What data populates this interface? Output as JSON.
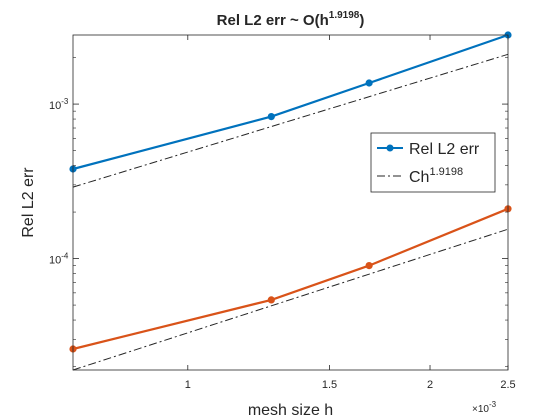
{
  "chart_data": {
    "type": "line",
    "title": {
      "base": "Rel L2 err ~ O(h",
      "exponent": "1.9198",
      "close": ")"
    },
    "xlabel": "mesh size h",
    "x_multiplier": {
      "base": "×10",
      "exponent": "-3"
    },
    "ylabel": "Rel L2 err",
    "x_scale": "log",
    "y_scale": "log",
    "xlim": [
      0.00072,
      0.0025
    ],
    "ylim": [
      1.9e-05,
      0.0028
    ],
    "x_ticks": [
      {
        "value": 0.001,
        "label": "1"
      },
      {
        "value": 0.0015,
        "label": "1.5"
      },
      {
        "value": 0.002,
        "label": "2"
      },
      {
        "value": 0.0025,
        "label": "2.5"
      }
    ],
    "y_ticks": [
      {
        "value": 0.0001,
        "base": "10",
        "exponent": "-4"
      },
      {
        "value": 0.001,
        "base": "10",
        "exponent": "-3"
      }
    ],
    "grid": false,
    "legend": {
      "placement": "right",
      "entries": [
        {
          "label": "Rel L2 err",
          "style": "solid-marker"
        },
        {
          "label_base": "Ch",
          "label_exponent": "1.9198",
          "style": "dashdot"
        }
      ]
    },
    "series": [
      {
        "color": "#0072BD",
        "style": "solid-marker",
        "x": [
          0.00072,
          0.00127,
          0.00168,
          0.0025
        ],
        "y": [
          0.00038,
          0.00083,
          0.00137,
          0.0028
        ]
      },
      {
        "color": "#262626",
        "style": "dashdot",
        "x": [
          0.00072,
          0.0025
        ],
        "y": [
          0.00029,
          0.0021
        ]
      },
      {
        "color": "#D95319",
        "style": "solid-marker",
        "x": [
          0.00072,
          0.00127,
          0.00168,
          0.0025
        ],
        "y": [
          2.6e-05,
          5.4e-05,
          9e-05,
          0.00021
        ]
      },
      {
        "color": "#262626",
        "style": "dashdot",
        "x": [
          0.00072,
          0.0025
        ],
        "y": [
          1.9e-05,
          0.000155
        ]
      }
    ]
  }
}
